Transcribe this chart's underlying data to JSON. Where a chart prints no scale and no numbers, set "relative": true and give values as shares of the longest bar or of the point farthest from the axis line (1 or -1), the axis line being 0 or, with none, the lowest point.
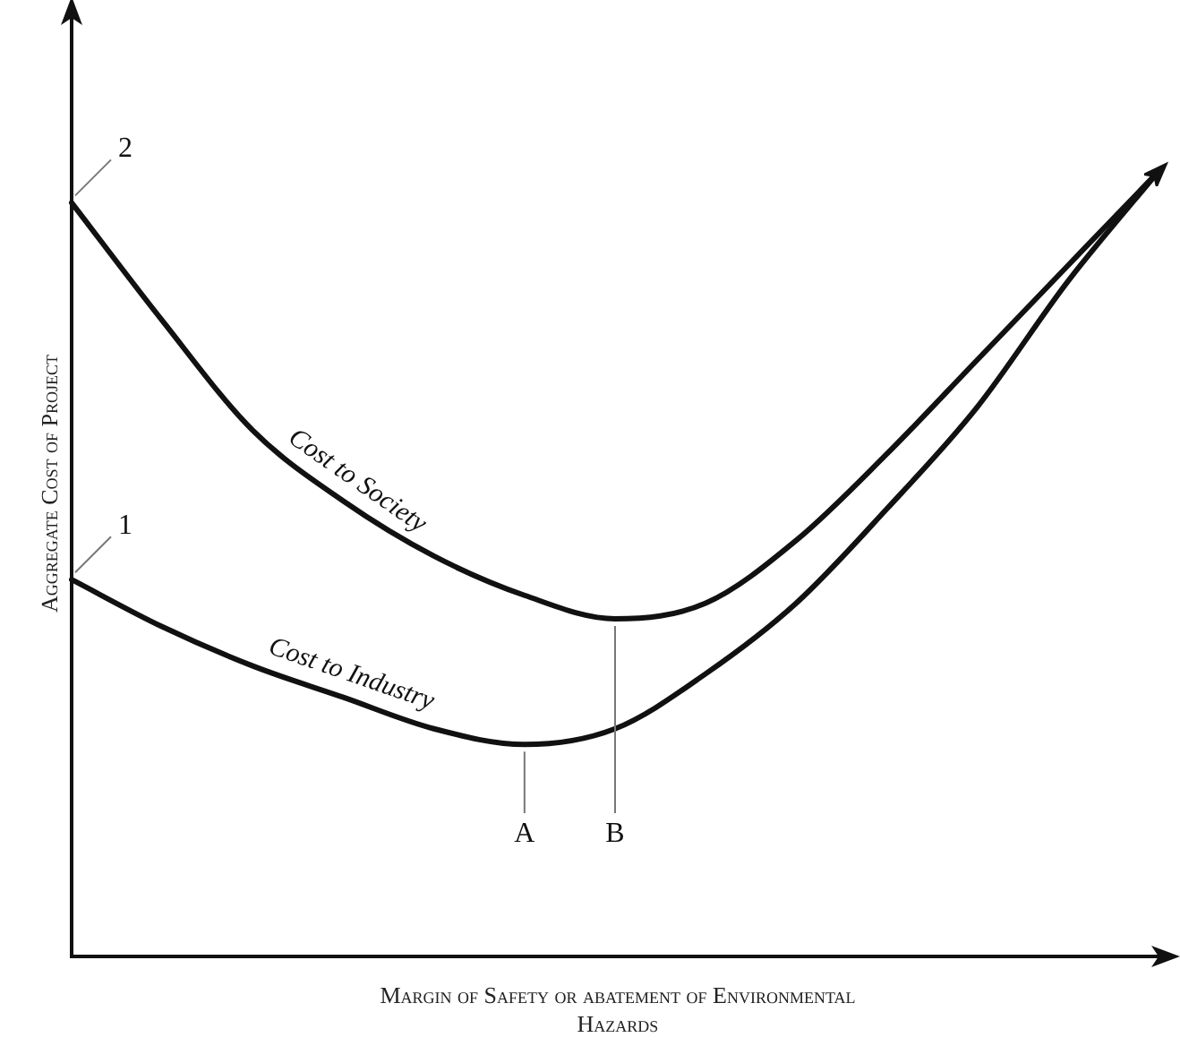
{
  "chart_data": {
    "type": "line",
    "relative": true,
    "xlabel": "Margin of Safety or abatement of Environmental Hazards",
    "ylabel": "Aggregate Cost of Project",
    "categories": [
      null,
      null,
      null,
      null,
      null,
      null,
      null,
      null,
      null,
      null,
      null,
      null,
      null
    ],
    "series": [
      {
        "name": "Cost to Industry",
        "color": "#111111",
        "values": [
          0.48,
          0.42,
          0.37,
          0.33,
          0.29,
          0.27,
          0.29,
          0.36,
          0.45,
          0.57,
          0.7,
          0.86,
          1
        ]
      },
      {
        "name": "Cost to Society",
        "color": "#111111",
        "values": [
          0.96,
          0.81,
          0.67,
          0.58,
          0.51,
          0.46,
          0.43,
          0.45,
          0.53,
          0.64,
          0.76,
          0.88,
          1
        ]
      }
    ],
    "annotations": [
      "1",
      "2",
      "A",
      "B"
    ],
    "grid": false,
    "legend": false,
    "tick_labels": false,
    "marker": "none",
    "line_style": "solid"
  }
}
